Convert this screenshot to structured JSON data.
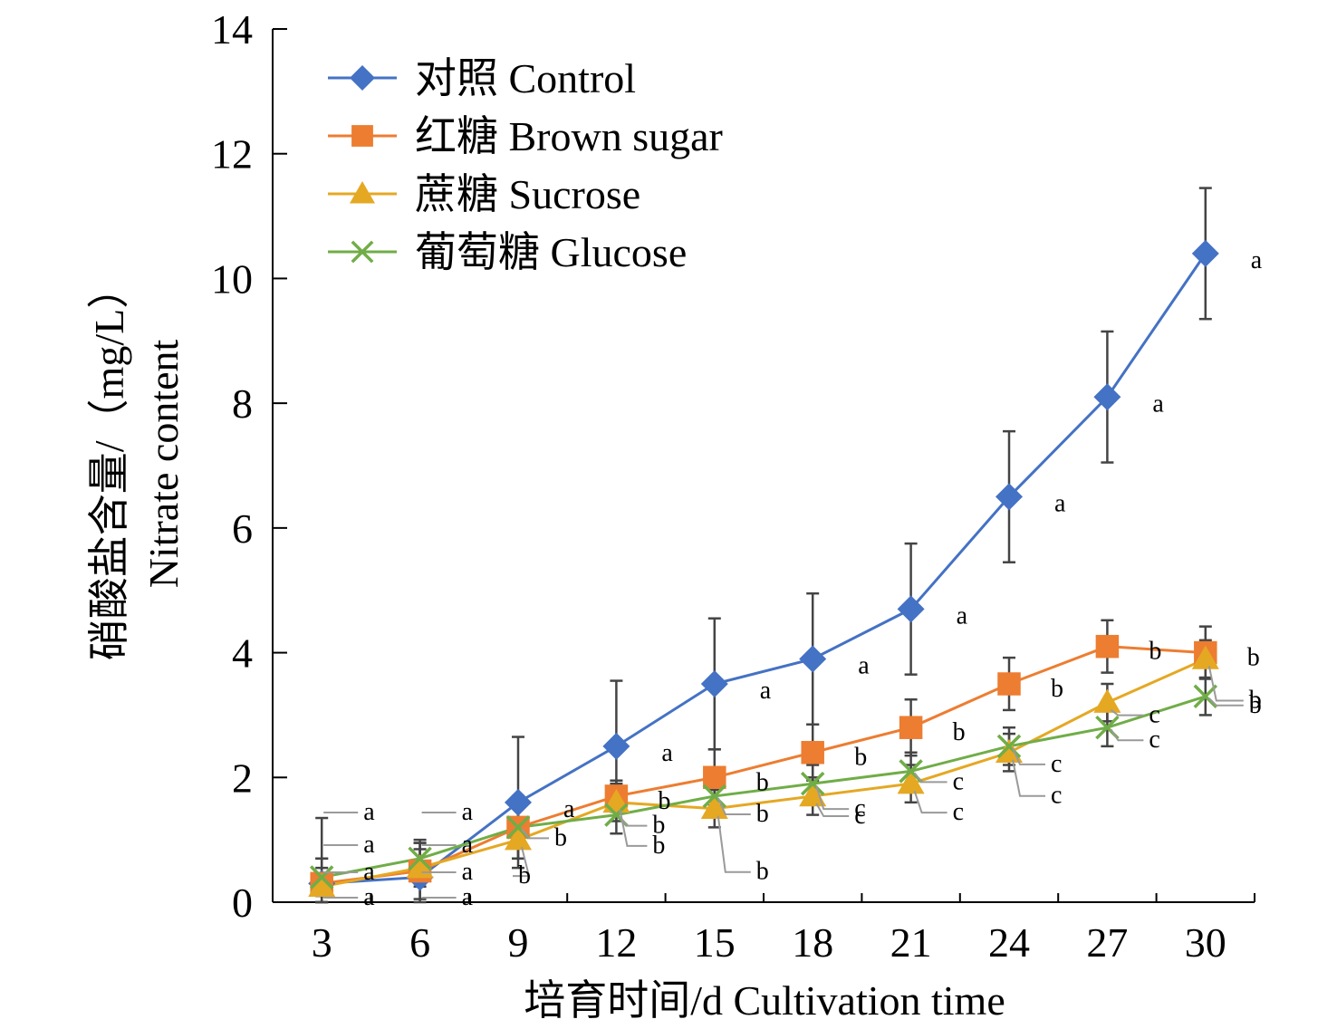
{
  "chart_data": {
    "type": "line",
    "xlabel": "培育时间/d Cultivation time",
    "ylabel_line1": "硝酸盐含量/（mg/L）",
    "ylabel_line2": "Nitrate content",
    "x": [
      3,
      6,
      9,
      12,
      15,
      18,
      21,
      24,
      27,
      30
    ],
    "xticks": [
      "3",
      "6",
      "9",
      "12",
      "15",
      "18",
      "21",
      "24",
      "27",
      "30"
    ],
    "ylim": [
      0,
      14
    ],
    "yticks": [
      "0",
      "2",
      "4",
      "6",
      "8",
      "10",
      "12",
      "14"
    ],
    "grid": false,
    "legend_position": "top-left",
    "series": [
      {
        "name": "对照 Control",
        "color": "#4472C4",
        "marker": "diamond",
        "values": [
          0.3,
          0.4,
          1.6,
          2.5,
          3.5,
          3.9,
          4.7,
          6.5,
          8.1,
          10.4
        ],
        "errors": [
          1.05,
          0.55,
          1.05,
          1.05,
          1.05,
          1.05,
          1.05,
          1.05,
          1.05,
          1.05
        ],
        "letters": [
          "a",
          "a",
          "a",
          "a",
          "a",
          "a",
          "a",
          "a",
          "a",
          "a"
        ]
      },
      {
        "name": "红糖 Brown sugar",
        "color": "#ED7D31",
        "marker": "square",
        "values": [
          0.3,
          0.5,
          1.2,
          1.7,
          2.0,
          2.4,
          2.8,
          3.5,
          4.1,
          4.0
        ],
        "errors": [
          0.4,
          0.45,
          0.5,
          0.25,
          0.45,
          0.45,
          0.45,
          0.42,
          0.42,
          0.42
        ],
        "letters": [
          "a",
          "a",
          "b",
          "b",
          "b",
          "b",
          "b",
          "b",
          "b",
          "b"
        ]
      },
      {
        "name": "蔗糖 Sucrose",
        "color": "#E5A823",
        "marker": "triangle",
        "values": [
          0.25,
          0.55,
          1.0,
          1.6,
          1.5,
          1.7,
          1.9,
          2.4,
          3.2,
          3.9
        ],
        "errors": [
          0.3,
          0.3,
          0.3,
          0.3,
          0.3,
          0.3,
          0.3,
          0.3,
          0.3,
          0.3
        ],
        "letters": [
          "a",
          "a",
          "b",
          "b",
          "b",
          "c",
          "c",
          "c",
          "c",
          "b"
        ]
      },
      {
        "name": "葡萄糖 Glucose",
        "color": "#70AD47",
        "marker": "x",
        "values": [
          0.4,
          0.7,
          1.2,
          1.4,
          1.7,
          1.9,
          2.1,
          2.5,
          2.8,
          3.3
        ],
        "errors": [
          0.3,
          0.3,
          0.3,
          0.3,
          0.3,
          0.3,
          0.3,
          0.3,
          0.3,
          0.3
        ],
        "letters": [
          "a",
          "a",
          "b",
          "b",
          "b",
          "c",
          "c",
          "c",
          "c",
          "b"
        ]
      }
    ]
  }
}
